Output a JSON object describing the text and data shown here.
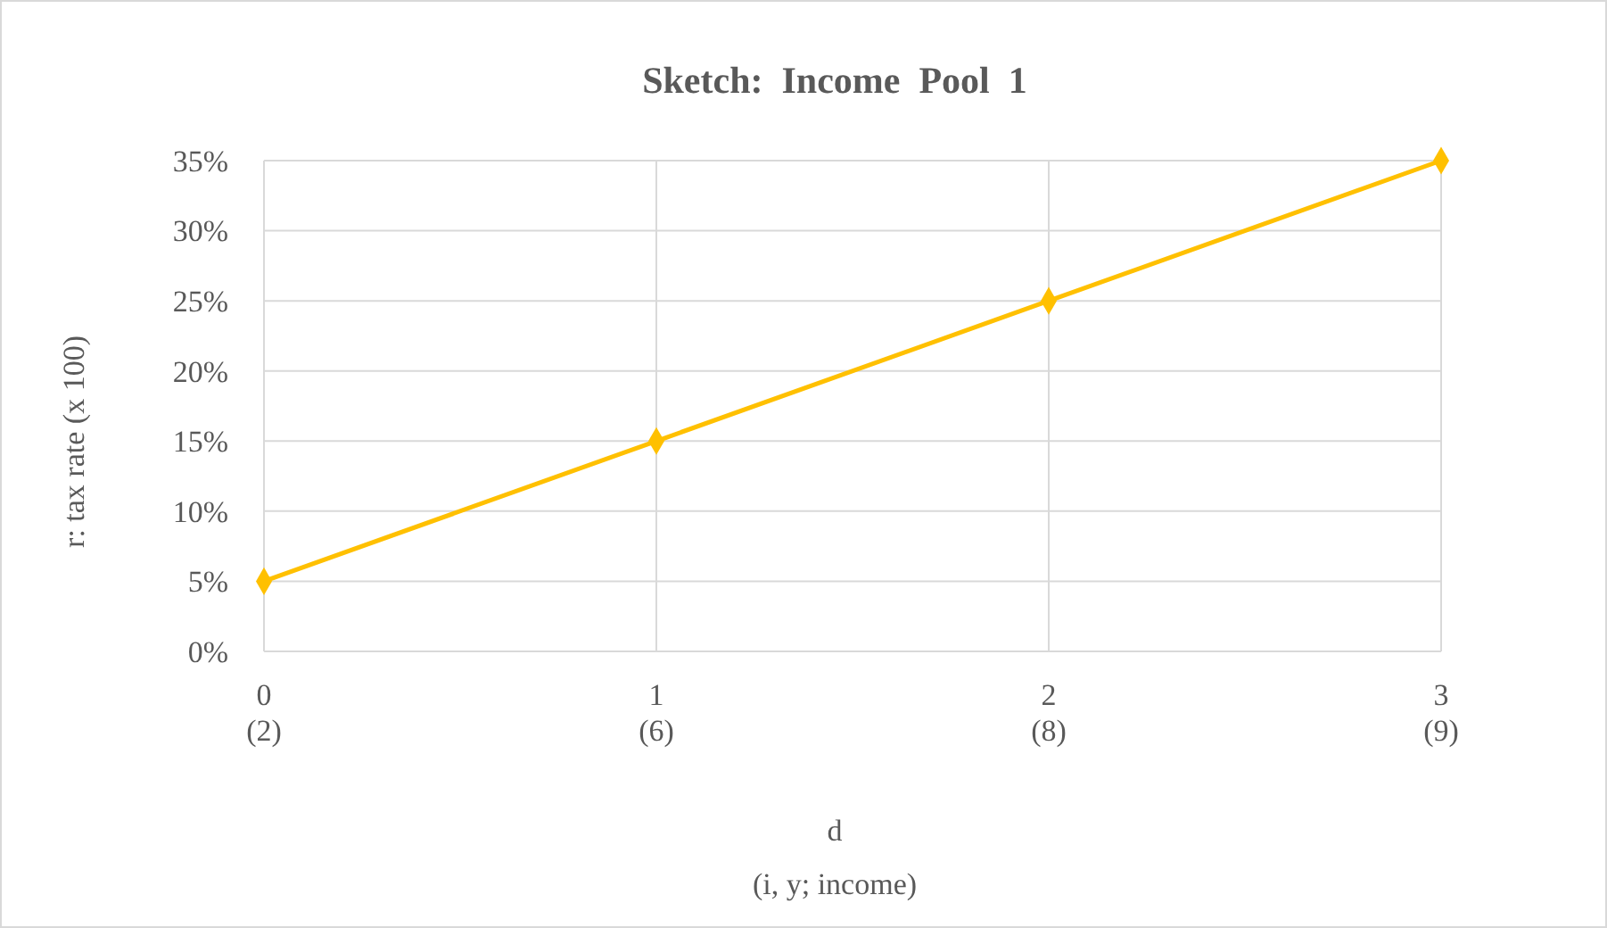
{
  "chart_data": {
    "type": "line",
    "title": "Sketch:  Income  Pool  1",
    "xlabel": "d\n(i, y; income)",
    "ylabel": "r: tax rate (x 100)",
    "categories": [
      "0\n(2)",
      "1\n(6)",
      "2\n(8)",
      "3\n(9)"
    ],
    "series": [
      {
        "color": "#ffc000",
        "values": [
          5,
          15,
          25,
          35
        ]
      }
    ],
    "ylim": [
      0,
      35
    ],
    "yticks": [
      {
        "value": 0,
        "label": "0%"
      },
      {
        "value": 5,
        "label": "5%"
      },
      {
        "value": 10,
        "label": "10%"
      },
      {
        "value": 15,
        "label": "15%"
      },
      {
        "value": 20,
        "label": "20%"
      },
      {
        "value": 25,
        "label": "25%"
      },
      {
        "value": 30,
        "label": "30%"
      },
      {
        "value": 35,
        "label": "35%"
      }
    ],
    "grid": true,
    "marker": "diamond",
    "line_style": "solid"
  }
}
